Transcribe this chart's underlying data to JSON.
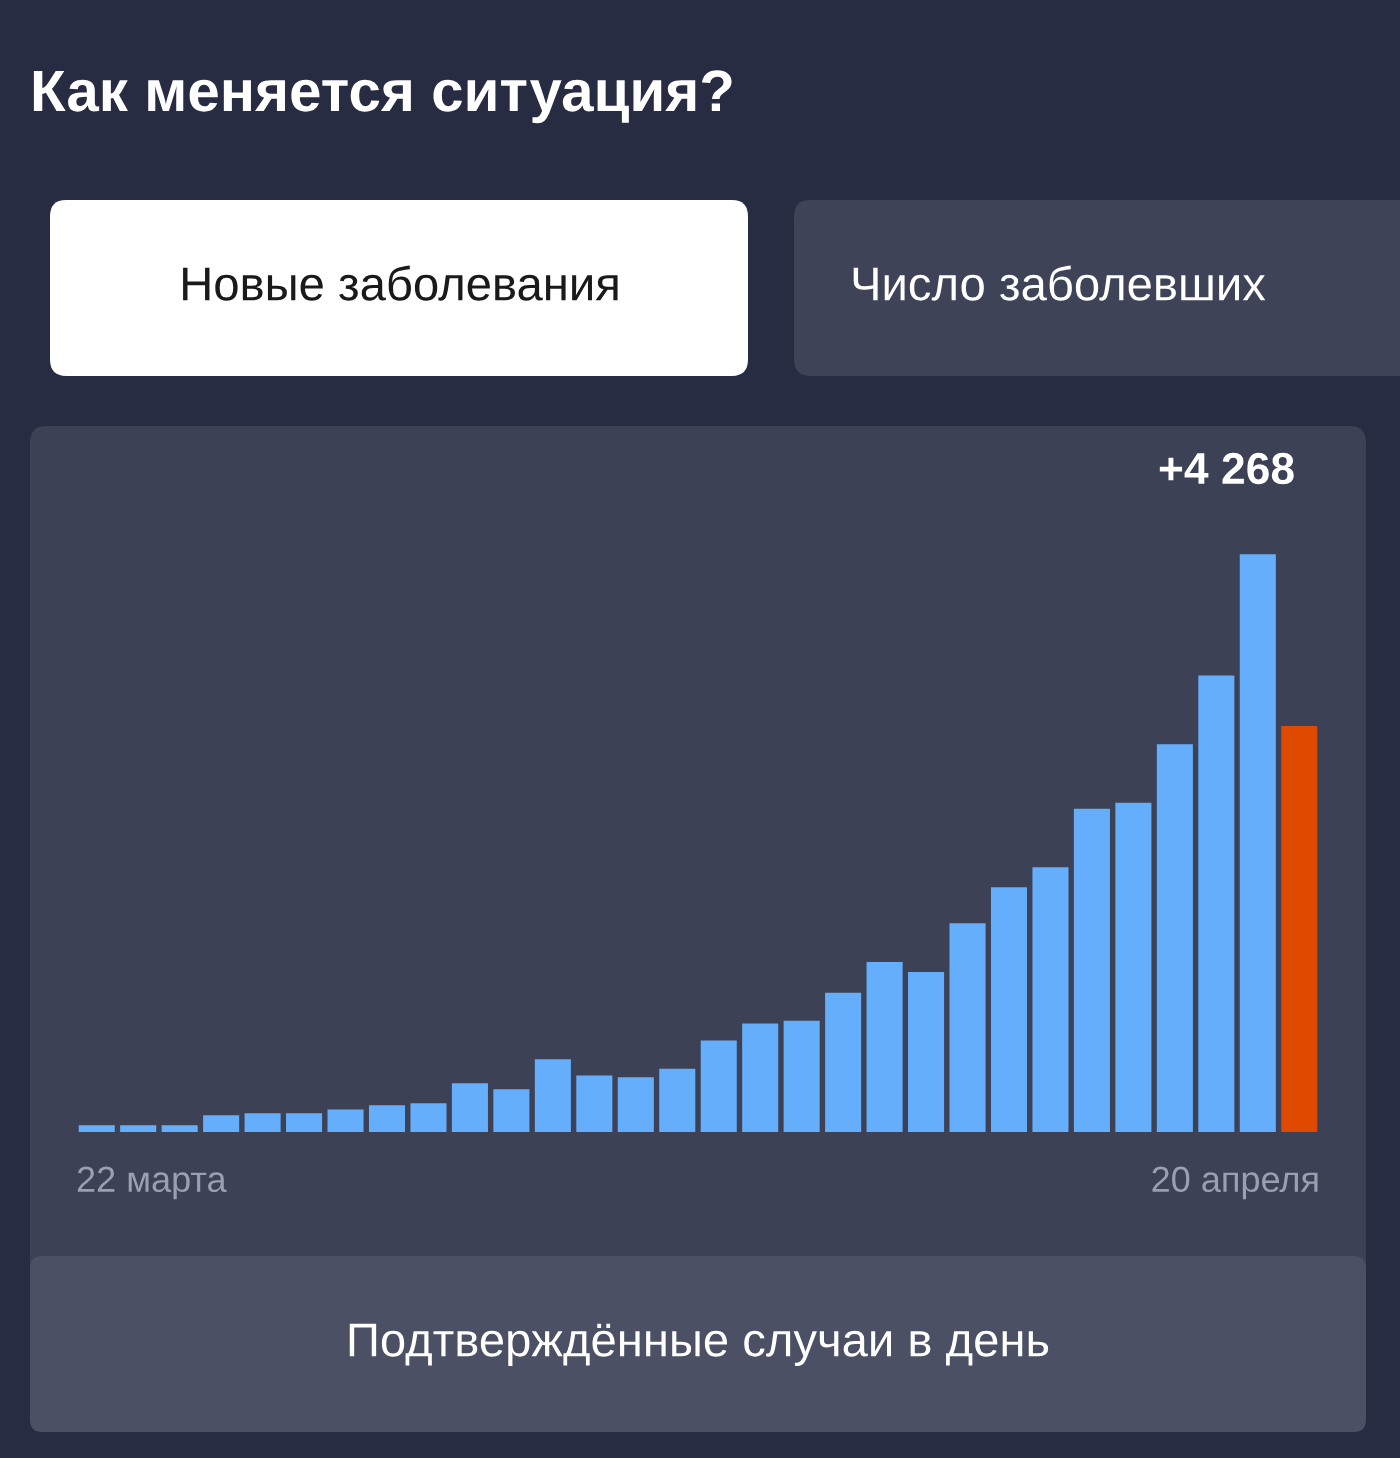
{
  "chart_data": {
    "type": "bar",
    "title": "Как меняется ситуация?",
    "categories": [
      null,
      null,
      null,
      null,
      null,
      null,
      null,
      null,
      null,
      null,
      null,
      null,
      null,
      null,
      null,
      null,
      null,
      null,
      null,
      null,
      null,
      null,
      null,
      null,
      null,
      null,
      null,
      null,
      null,
      null
    ],
    "values": [
      49,
      49,
      49,
      123,
      138,
      138,
      167,
      197,
      212,
      360,
      315,
      537,
      418,
      404,
      468,
      675,
      802,
      822,
      1029,
      1255,
      1182,
      1541,
      1807,
      1955,
      2388,
      2432,
      2865,
      3372,
      4268,
      2998
    ],
    "colors": [
      "#64aefc",
      "#64aefc",
      "#64aefc",
      "#64aefc",
      "#64aefc",
      "#64aefc",
      "#64aefc",
      "#64aefc",
      "#64aefc",
      "#64aefc",
      "#64aefc",
      "#64aefc",
      "#64aefc",
      "#64aefc",
      "#64aefc",
      "#64aefc",
      "#64aefc",
      "#64aefc",
      "#64aefc",
      "#64aefc",
      "#64aefc",
      "#64aefc",
      "#64aefc",
      "#64aefc",
      "#64aefc",
      "#64aefc",
      "#64aefc",
      "#64aefc",
      "#64aefc",
      "#e04a00"
    ],
    "value_labels": [
      null,
      null,
      null,
      null,
      null,
      null,
      null,
      null,
      null,
      null,
      null,
      null,
      null,
      null,
      null,
      null,
      null,
      null,
      null,
      null,
      null,
      null,
      null,
      null,
      null,
      null,
      null,
      null,
      "+4 268",
      null
    ],
    "annotations": [
      "Новые заболевания",
      "Число заболевших",
      "Подтверждённые случаи в день",
      "22 марта",
      "20 апреля"
    ]
  }
}
